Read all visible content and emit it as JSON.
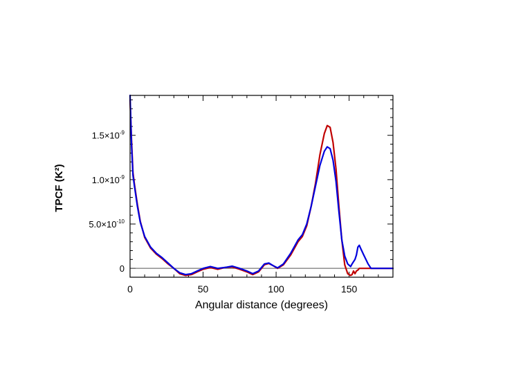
{
  "chart_data": {
    "type": "line",
    "title": "",
    "xlabel": "Angular distance (degrees)",
    "ylabel": "TPCF (K²)",
    "xlim": [
      0,
      180
    ],
    "ylim": [
      -1e-10,
      1.95e-09
    ],
    "grid": false,
    "legend": "none",
    "x_ticks": [
      {
        "value": 0,
        "label": "0"
      },
      {
        "value": 50,
        "label": "50"
      },
      {
        "value": 100,
        "label": "100"
      },
      {
        "value": 150,
        "label": "150"
      }
    ],
    "y_ticks": [
      {
        "value": 0,
        "mant": "0",
        "exp": ""
      },
      {
        "value": 5e-10,
        "mant": "5.0×10",
        "exp": "-10"
      },
      {
        "value": 1e-09,
        "mant": "1.0×10",
        "exp": "-9"
      },
      {
        "value": 1.5e-09,
        "mant": "1.5×10",
        "exp": "-9"
      }
    ],
    "zero_line": 0,
    "series": [
      {
        "color": "#c00000",
        "x": [
          0,
          1,
          2,
          3,
          5,
          7,
          10,
          14,
          18,
          22,
          26,
          30,
          34,
          38,
          42,
          46,
          50,
          55,
          60,
          65,
          70,
          75,
          80,
          84,
          88,
          92,
          95,
          98,
          101,
          105,
          110,
          115,
          118,
          121,
          124,
          127,
          130,
          133,
          135,
          137,
          139,
          141,
          143,
          145,
          147,
          149,
          151,
          152,
          153,
          154,
          155,
          156,
          157,
          158,
          160,
          165,
          170,
          175,
          180
        ],
        "y": [
          1.9e-09,
          1.45e-09,
          1.08e-09,
          9.5e-10,
          7.2e-10,
          5.3e-10,
          3.5e-10,
          2.3e-10,
          1.6e-10,
          1.1e-10,
          5e-11,
          0,
          -6e-11,
          -8e-11,
          -7e-11,
          -4e-11,
          -1e-11,
          1e-11,
          -1e-11,
          1e-11,
          1.5e-11,
          -1e-11,
          -4e-11,
          -7e-11,
          -4e-11,
          4e-11,
          5.5e-11,
          3e-11,
          0,
          4e-11,
          1.5e-10,
          3e-10,
          3.6e-10,
          4.8e-10,
          7e-10,
          9.6e-10,
          1.28e-09,
          1.52e-09,
          1.61e-09,
          1.59e-09,
          1.42e-09,
          1.12e-09,
          7e-10,
          3.2e-10,
          4e-11,
          -6e-11,
          -8e-11,
          -7e-11,
          -3e-11,
          -6e-11,
          -3e-11,
          -2e-11,
          0,
          0,
          0,
          0,
          0,
          0,
          0
        ]
      },
      {
        "color": "#0000dd",
        "x": [
          0,
          1,
          2,
          3,
          5,
          7,
          10,
          14,
          18,
          22,
          26,
          30,
          34,
          38,
          42,
          46,
          50,
          55,
          60,
          65,
          70,
          75,
          80,
          84,
          88,
          92,
          95,
          98,
          101,
          105,
          110,
          115,
          118,
          121,
          124,
          127,
          130,
          133,
          135,
          137,
          139,
          141,
          143,
          145,
          147,
          149,
          151,
          152,
          154,
          155,
          156,
          157,
          158,
          160,
          163,
          165,
          170,
          175,
          180
        ],
        "y": [
          1.95e-09,
          1.4e-09,
          1.05e-09,
          9.3e-10,
          7e-10,
          5.2e-10,
          3.6e-10,
          2.4e-10,
          1.7e-10,
          1.2e-10,
          6e-11,
          0,
          -5e-11,
          -7e-11,
          -6e-11,
          -3e-11,
          0,
          2e-11,
          0,
          1e-11,
          2.5e-11,
          0,
          -3e-11,
          -6e-11,
          -3e-11,
          5e-11,
          6e-11,
          3e-11,
          5e-12,
          5e-11,
          1.7e-10,
          3.2e-10,
          3.8e-10,
          5e-10,
          7e-10,
          9.3e-10,
          1.16e-09,
          1.32e-09,
          1.37e-09,
          1.35e-09,
          1.22e-09,
          9.8e-10,
          6.4e-10,
          3.2e-10,
          1.4e-10,
          5e-11,
          2e-11,
          5e-11,
          1e-10,
          1.5e-10,
          2.4e-10,
          2.6e-10,
          2.2e-10,
          1.5e-10,
          5e-11,
          0,
          0,
          0,
          0
        ]
      }
    ]
  }
}
